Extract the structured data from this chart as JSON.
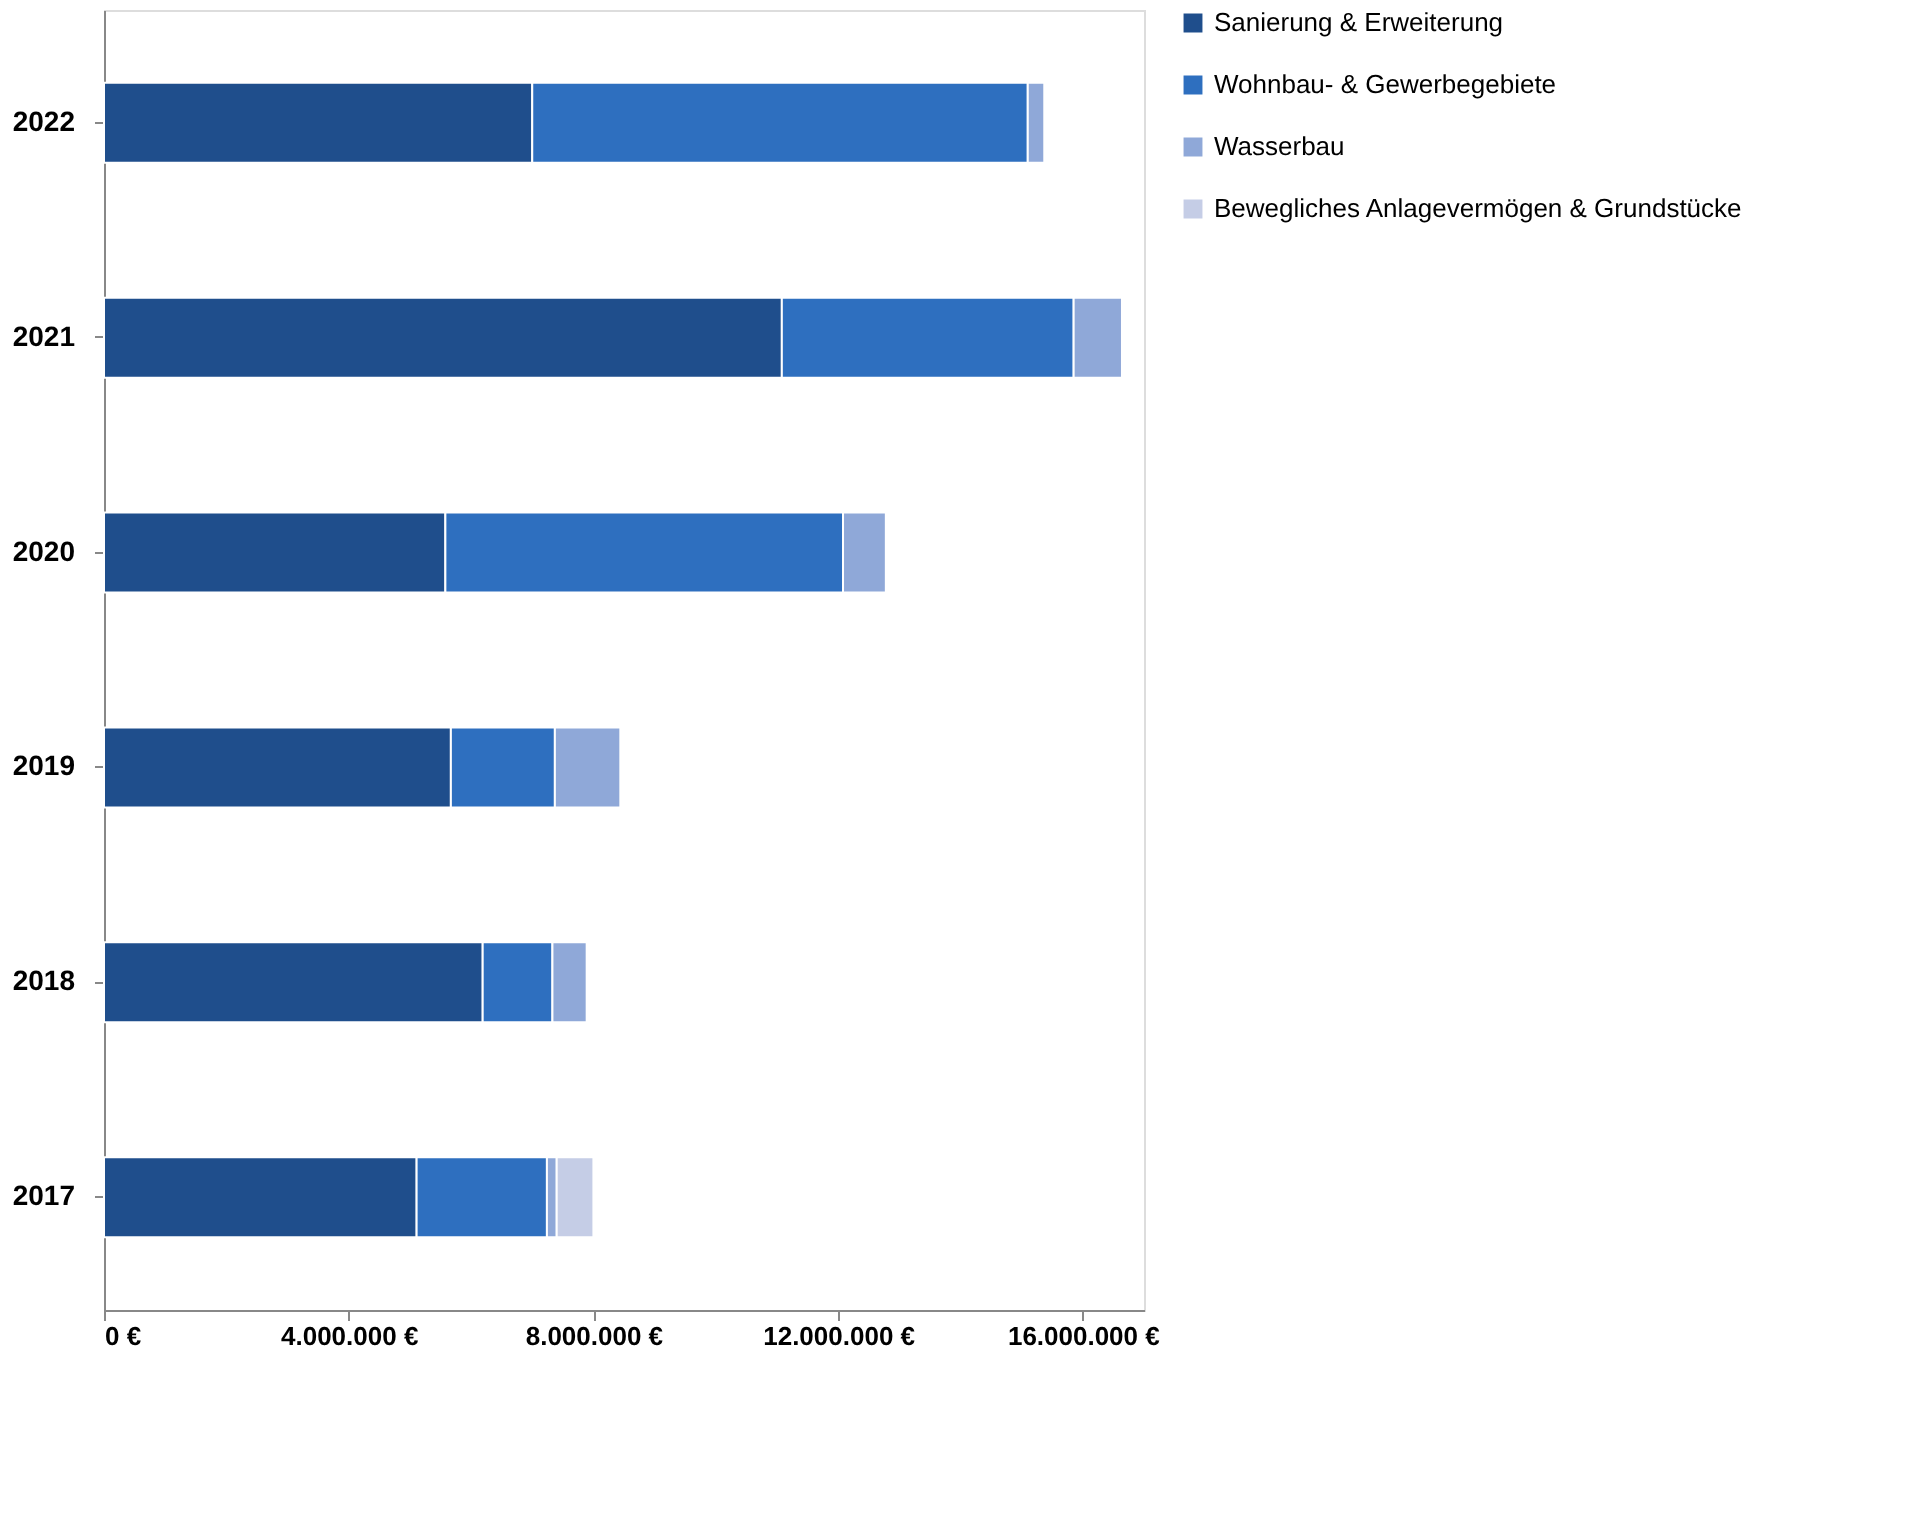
{
  "chart_data": {
    "type": "bar",
    "orientation": "horizontal",
    "stacked": true,
    "categories": [
      "2022",
      "2021",
      "2020",
      "2019",
      "2018",
      "2017"
    ],
    "series": [
      {
        "name": "Sanierung & Erweiterung",
        "color": "#1f4e8c",
        "values": [
          7000000,
          11080000,
          5580000,
          5670000,
          6190000,
          5110000
        ]
      },
      {
        "name": "Wohnbau- & Gewerbegebiete",
        "color": "#2e6fbf",
        "values": [
          8100000,
          4770000,
          6500000,
          1700000,
          1140000,
          2130000
        ]
      },
      {
        "name": "Wasserbau",
        "color": "#8fa8d8",
        "values": [
          270000,
          790000,
          700000,
          1070000,
          560000,
          160000
        ]
      },
      {
        "name": "Bewegliches Anlagevermögen & Grundstücke",
        "color": "#c5cde6",
        "values": [
          null,
          null,
          null,
          null,
          null,
          600000
        ]
      }
    ],
    "xlim": [
      0,
      17000000
    ],
    "xticks": [
      {
        "value": 0,
        "label": "0 €"
      },
      {
        "value": 4000000,
        "label": "4.000.000 €"
      },
      {
        "value": 8000000,
        "label": "8.000.000 €"
      },
      {
        "value": 12000000,
        "label": "12.000.000 €"
      },
      {
        "value": 16000000,
        "label": "16.000.000 €"
      }
    ],
    "grid": false,
    "legend": "right"
  }
}
